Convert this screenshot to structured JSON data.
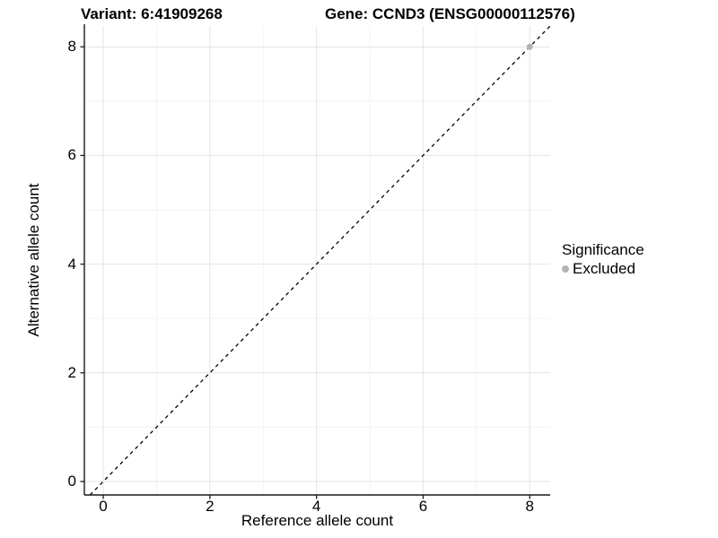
{
  "header": {
    "variant_title": "Variant: 6:41909268",
    "gene_title": "Gene: CCND3 (ENSG00000112576)"
  },
  "chart_data": {
    "type": "scatter",
    "xlabel": "Reference allele count",
    "ylabel": "Alternative allele count",
    "xlim": [
      -0.354,
      8.383
    ],
    "ylim": [
      -0.248,
      8.383
    ],
    "x_ticks": [
      0,
      2,
      4,
      6,
      8
    ],
    "y_ticks": [
      0,
      2,
      4,
      6,
      8
    ],
    "x_minor_ticks": [
      1,
      3,
      5,
      7
    ],
    "y_minor_ticks": [
      1,
      3,
      5,
      7
    ],
    "grid": "major+minor",
    "reference_line": {
      "type": "identity",
      "style": "dashed",
      "color": "#000000"
    },
    "series": [
      {
        "name": "Excluded",
        "color": "#b3b3b3",
        "marker": "circle",
        "points": [
          [
            8,
            8
          ]
        ]
      }
    ],
    "legend": {
      "title": "Significance",
      "position": "right",
      "items": [
        {
          "label": "Excluded",
          "color": "#b3b3b3"
        }
      ]
    }
  },
  "colors": {
    "background": "#ffffff",
    "grid_major": "#e4e4e4",
    "grid_minor": "#f2f2f2",
    "axis_line": "#1a1a1a",
    "text": "#000000"
  }
}
